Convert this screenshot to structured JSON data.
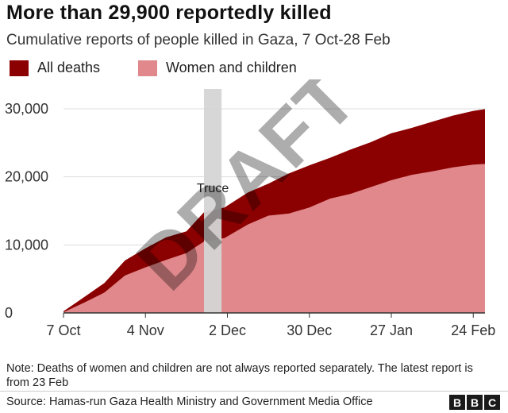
{
  "title": "More than 29,900 reportedly killed",
  "subtitle": "Cumulative reports of people killed in Gaza, 7 Oct-28 Feb",
  "legend": [
    {
      "label": "All deaths",
      "color": "#8b0000"
    },
    {
      "label": "Women and children",
      "color": "#e0888b"
    }
  ],
  "chart_data": {
    "type": "area",
    "x_label_format": "day month",
    "x": [
      "2023-10-07",
      "2023-10-14",
      "2023-10-21",
      "2023-10-28",
      "2023-11-04",
      "2023-11-11",
      "2023-11-18",
      "2023-11-24",
      "2023-12-01",
      "2023-12-09",
      "2023-12-16",
      "2023-12-23",
      "2023-12-30",
      "2024-01-06",
      "2024-01-13",
      "2024-01-20",
      "2024-01-27",
      "2024-02-03",
      "2024-02-10",
      "2024-02-17",
      "2024-02-24",
      "2024-02-28"
    ],
    "series": [
      {
        "name": "All deaths",
        "color": "#8b0000",
        "values": [
          250,
          2300,
          4400,
          7700,
          9500,
          11100,
          12000,
          14800,
          15500,
          17700,
          19000,
          20500,
          21700,
          22800,
          24000,
          25100,
          26400,
          27200,
          28100,
          29000,
          29700,
          29950
        ]
      },
      {
        "name": "Women and children",
        "color": "#e0888b",
        "values": [
          100,
          1500,
          3000,
          5500,
          6700,
          7800,
          8800,
          10500,
          11000,
          13000,
          14300,
          14600,
          15500,
          16800,
          17500,
          18500,
          19500,
          20300,
          20800,
          21400,
          21800,
          21900
        ]
      }
    ],
    "ylim": [
      0,
      30000
    ],
    "yticks": [
      0,
      10000,
      20000,
      30000
    ],
    "ytick_labels": [
      "0",
      "10,000",
      "20,000",
      "30,000"
    ],
    "xticks": [
      "2023-10-07",
      "2023-11-04",
      "2023-12-02",
      "2023-12-30",
      "2024-01-27",
      "2024-02-24"
    ],
    "xtick_labels": [
      "7 Oct",
      "4 Nov",
      "2 Dec",
      "30 Dec",
      "27 Jan",
      "24 Feb"
    ],
    "grid": "horizontal",
    "annotations": [
      {
        "type": "band",
        "x_start": "2023-11-24",
        "x_end": "2023-11-30",
        "label": "Truce",
        "color": "#d5d5d5"
      }
    ],
    "watermark": "DRAFT"
  },
  "note": "Note: Deaths of women and children are not always reported separately. The latest report is from 23 Feb",
  "source": "Source: Hamas-run Gaza Health Ministry and Government Media Office",
  "logo": [
    "B",
    "B",
    "C"
  ]
}
